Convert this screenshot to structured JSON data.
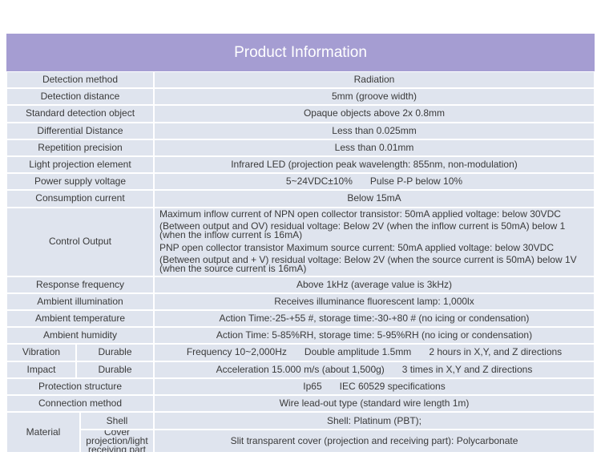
{
  "title": "Product Information",
  "rows": [
    {
      "label": "Detection method",
      "values": [
        "Radiation"
      ]
    },
    {
      "label": "Detection distance",
      "values": [
        "5mm (groove width)"
      ]
    },
    {
      "label": "Standard detection object",
      "values": [
        "Opaque objects above 2x 0.8mm"
      ]
    },
    {
      "label": "Differential Distance",
      "values": [
        "Less than 0.025mm"
      ]
    },
    {
      "label": "Repetition precision",
      "values": [
        "Less than 0.01mm"
      ]
    },
    {
      "label": "Light projection element",
      "values": [
        "Infrared LED (projection peak wavelength: 855nm, non-modulation)"
      ]
    },
    {
      "label": "Power supply voltage",
      "values": [
        "5~24VDC±10%",
        "Pulse P-P below 10%"
      ]
    },
    {
      "label": "Consumption current",
      "values": [
        "Below 15mA"
      ]
    },
    {
      "label": "Control Output",
      "lines": [
        "Maximum inflow current of NPN open collector transistor: 50mA applied voltage: below 30VDC",
        "(Between output and OV) residual voltage: Below 2V (when the inflow current is 50mA) below 1 (when the inflow current is 16mA)",
        "PNP open collector transistor Maximum source current: 50mA applied voltage: below 30VDC",
        "(Between output and + V) residual voltage: Below 2V (when the source current is 50mA) below 1V (when the source current is 16mA)"
      ]
    },
    {
      "label": "Response frequency",
      "values": [
        "Above 1kHz (average value is 3kHz)"
      ]
    },
    {
      "label": "Ambient illumination",
      "values": [
        "Receives illuminance fluorescent lamp: 1,000lx"
      ]
    },
    {
      "label": "Ambient temperature",
      "values": [
        "Action Time:-25-+55 #, storage time:-30-+80 # (no icing or condensation)"
      ]
    },
    {
      "label": "Ambient humidity",
      "values": [
        "Action Time: 5-85%RH, storage time: 5-95%RH (no icing or condensation)"
      ]
    },
    {
      "label": "Vibration",
      "sublabel": "Durable",
      "values": [
        "Frequency 10~2,000Hz",
        "Double amplitude 1.5mm",
        "2 hours in X,Y, and Z directions"
      ]
    },
    {
      "label": "Impact",
      "sublabel": "Durable",
      "values": [
        "Acceleration 15.000 m/s (about 1,500g)",
        "3 times in X,Y and Z directions"
      ]
    },
    {
      "label": "Protection structure",
      "values": [
        "Ip65",
        "IEC 60529 specifications"
      ]
    },
    {
      "label": "Connection method",
      "values": [
        "Wire lead-out type (standard wire length 1m)"
      ]
    },
    {
      "label": "Material",
      "parts": [
        {
          "sublabel": "Shell",
          "values": [
            "Shell: Platinum (PBT);"
          ]
        },
        {
          "sublabel": "Cover projection/light receiving part",
          "values": [
            "Slit transparent cover (projection and receiving part): Polycarbonate"
          ]
        }
      ]
    }
  ]
}
